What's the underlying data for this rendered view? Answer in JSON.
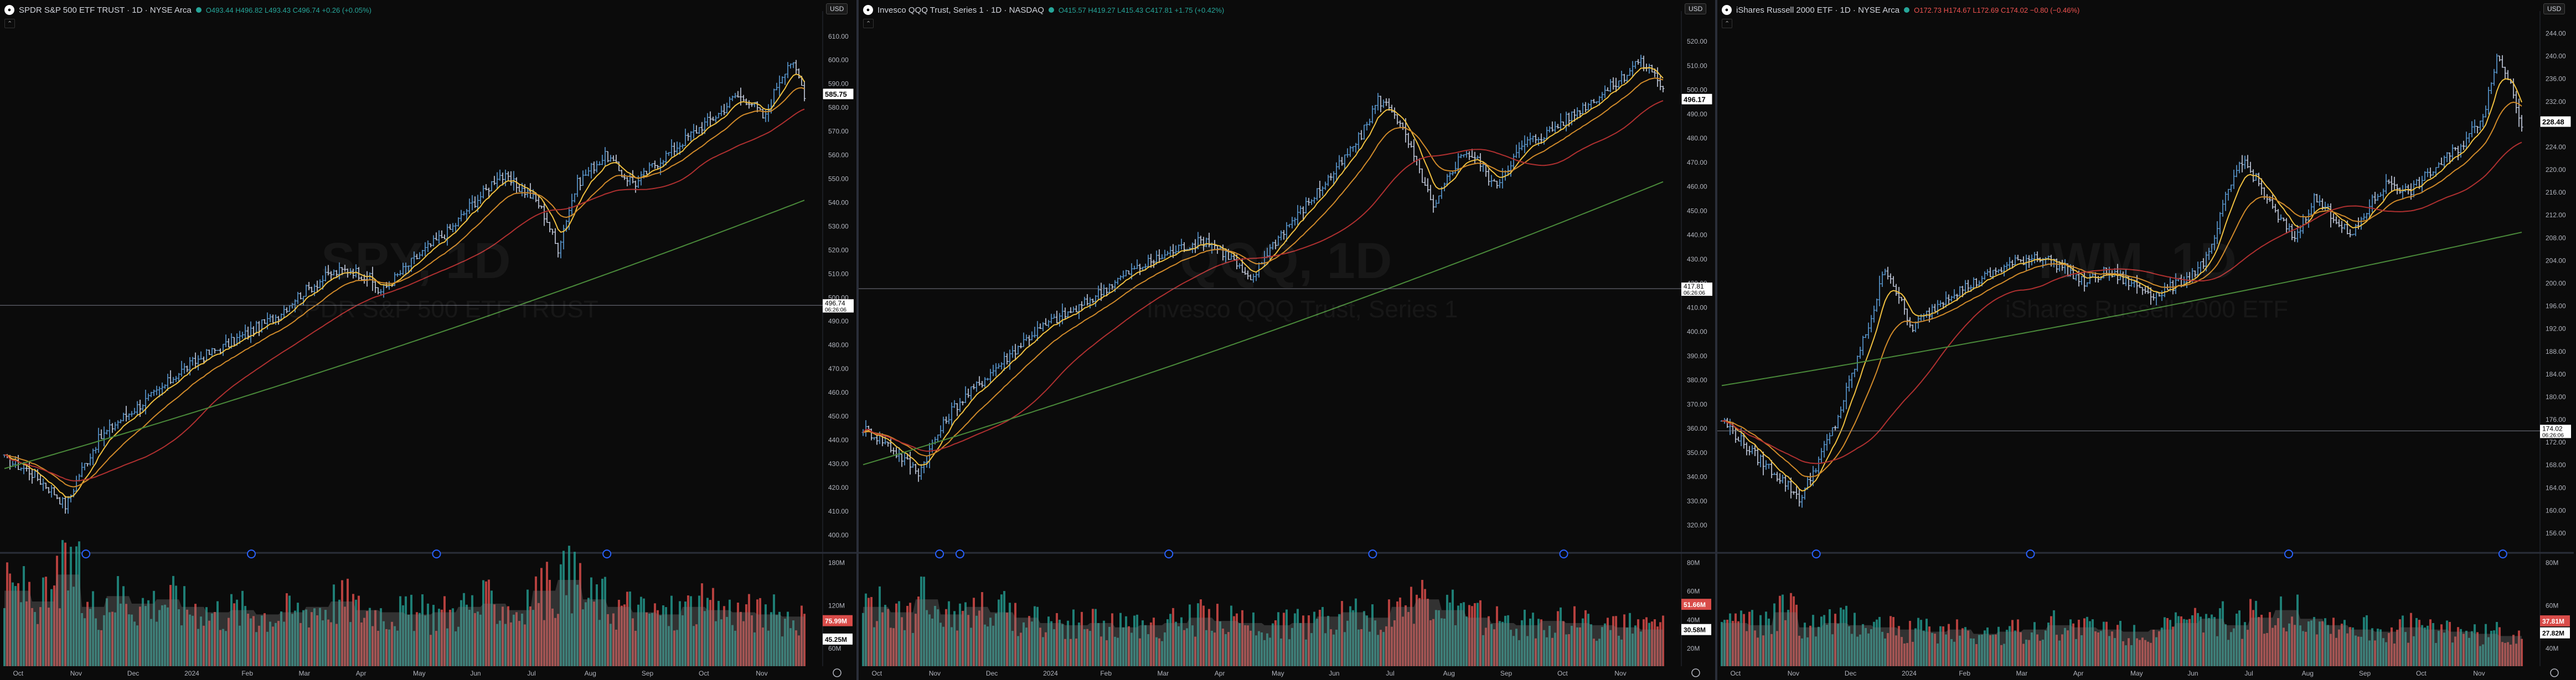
{
  "colors": {
    "bar_up": "#5b9bd5",
    "bar_down": "#c9d1e3",
    "ema_fast": "#f0c040",
    "ema_mid": "#d08a2a",
    "ema_slow": "#b03030",
    "ma_long": "#4a8a3a",
    "vol_up": "#26a69a",
    "vol_down": "#ef5350",
    "vol_avg": "#7a7a7a"
  },
  "chart_data": [
    {
      "type": "ohlc",
      "symbol_name": "SPDR S&P 500 ETF TRUST · 1D · NYSE Arca",
      "logo_icon": "spdr-logo-icon",
      "ohlc_label": "O493.44 H496.82 L493.43 C496.74 +0.26 (+0.05%)",
      "change_sign": "pos",
      "currency": "USD",
      "watermark_ticker": "SPY, 1D",
      "watermark_name": "SPDR S&P 500 ETF TRUST",
      "price_ticks": [
        610,
        600,
        590,
        580,
        570,
        560,
        550,
        540,
        530,
        520,
        510,
        500,
        490,
        480,
        470,
        460,
        450,
        440,
        430,
        420,
        410,
        400
      ],
      "ylim": [
        396,
        616
      ],
      "last_price": "585.75",
      "crosshair_price": "496.74",
      "crosshair_time": "06:26:06",
      "crosshair_y": 496.74,
      "month_labels": [
        "Oct",
        "Nov",
        "Dec",
        "2024",
        "Feb",
        "Mar",
        "Apr",
        "May",
        "Jun",
        "Jul",
        "Aug",
        "Sep",
        "Oct",
        "Nov"
      ],
      "volume_ticks": [
        "180M",
        "120M",
        "60M"
      ],
      "volume_ylim": [
        0,
        180
      ],
      "volume_labels": [
        "75.99M",
        "45.25M"
      ],
      "volume_label_values": [
        75.99,
        45.25
      ],
      "price_path": [
        [
          0,
          432
        ],
        [
          10,
          427
        ],
        [
          20,
          418
        ],
        [
          25,
          412
        ],
        [
          30,
          425
        ],
        [
          38,
          440
        ],
        [
          45,
          447
        ],
        [
          55,
          455
        ],
        [
          62,
          460
        ],
        [
          70,
          468
        ],
        [
          80,
          475
        ],
        [
          90,
          480
        ],
        [
          100,
          486
        ],
        [
          110,
          492
        ],
        [
          118,
          500
        ],
        [
          125,
          505
        ],
        [
          132,
          510
        ],
        [
          140,
          512
        ],
        [
          148,
          508
        ],
        [
          152,
          502
        ],
        [
          156,
          506
        ],
        [
          162,
          512
        ],
        [
          168,
          518
        ],
        [
          175,
          524
        ],
        [
          182,
          530
        ],
        [
          188,
          538
        ],
        [
          195,
          545
        ],
        [
          200,
          552
        ],
        [
          206,
          548
        ],
        [
          212,
          544
        ],
        [
          216,
          540
        ],
        [
          220,
          532
        ],
        [
          224,
          520
        ],
        [
          228,
          535
        ],
        [
          232,
          548
        ],
        [
          238,
          555
        ],
        [
          244,
          560
        ],
        [
          250,
          552
        ],
        [
          256,
          548
        ],
        [
          262,
          555
        ],
        [
          268,
          560
        ],
        [
          275,
          566
        ],
        [
          282,
          572
        ],
        [
          290,
          578
        ],
        [
          296,
          585
        ],
        [
          302,
          583
        ],
        [
          308,
          575
        ],
        [
          313,
          590
        ],
        [
          318,
          600
        ],
        [
          322,
          592
        ],
        [
          324,
          586
        ]
      ],
      "ma_long_start": 428,
      "ma_long_end": 541,
      "events": [
        33,
        100,
        175,
        244
      ],
      "volume_profile": [
        70,
        60,
        85,
        55,
        65,
        58,
        62,
        55,
        50,
        52,
        48,
        50,
        55,
        60,
        52,
        50,
        48,
        50,
        55,
        58,
        52,
        70,
        80,
        62,
        55,
        50,
        48,
        55,
        52,
        50,
        48,
        46
      ]
    },
    {
      "type": "ohlc",
      "symbol_name": "Invesco QQQ Trust, Series 1 · 1D · NASDAQ",
      "logo_icon": "invesco-logo-icon",
      "ohlc_label": "O415.57 H419.27 L415.43 C417.81 +1.75 (+0.42%)",
      "change_sign": "pos",
      "currency": "USD",
      "watermark_ticker": "QQQ, 1D",
      "watermark_name": "Invesco QQQ Trust, Series 1",
      "price_ticks": [
        520,
        510,
        500,
        490,
        480,
        470,
        460,
        450,
        440,
        430,
        420,
        410,
        400,
        390,
        380,
        370,
        360,
        350,
        340,
        330,
        320
      ],
      "ylim": [
        312,
        528
      ],
      "last_price": "496.17",
      "crosshair_price": "417.81",
      "crosshair_time": "06:26:06",
      "crosshair_y": 417.81,
      "month_labels": [
        "Oct",
        "Nov",
        "Dec",
        "2024",
        "Feb",
        "Mar",
        "Apr",
        "May",
        "Jun",
        "Jul",
        "Aug",
        "Sep",
        "Oct",
        "Nov"
      ],
      "volume_ticks": [
        "80M",
        "60M",
        "40M",
        "20M"
      ],
      "volume_ylim": [
        0,
        90
      ],
      "volume_labels": [
        "51.66M",
        "30.58M"
      ],
      "volume_label_values": [
        51.66,
        30.58
      ],
      "price_path": [
        [
          0,
          360
        ],
        [
          8,
          355
        ],
        [
          15,
          348
        ],
        [
          22,
          342
        ],
        [
          28,
          355
        ],
        [
          35,
          368
        ],
        [
          45,
          378
        ],
        [
          55,
          388
        ],
        [
          65,
          398
        ],
        [
          75,
          405
        ],
        [
          85,
          410
        ],
        [
          95,
          418
        ],
        [
          105,
          425
        ],
        [
          115,
          430
        ],
        [
          125,
          435
        ],
        [
          135,
          438
        ],
        [
          145,
          430
        ],
        [
          152,
          420
        ],
        [
          158,
          432
        ],
        [
          165,
          442
        ],
        [
          172,
          450
        ],
        [
          180,
          460
        ],
        [
          188,
          470
        ],
        [
          196,
          482
        ],
        [
          202,
          496
        ],
        [
          208,
          492
        ],
        [
          214,
          478
        ],
        [
          220,
          462
        ],
        [
          224,
          450
        ],
        [
          230,
          465
        ],
        [
          236,
          475
        ],
        [
          242,
          470
        ],
        [
          248,
          460
        ],
        [
          254,
          470
        ],
        [
          260,
          478
        ],
        [
          268,
          482
        ],
        [
          276,
          488
        ],
        [
          284,
          494
        ],
        [
          292,
          500
        ],
        [
          298,
          505
        ],
        [
          304,
          512
        ],
        [
          310,
          508
        ],
        [
          314,
          500
        ]
      ],
      "ma_long_start": 345,
      "ma_long_end": 462,
      "events": [
        30,
        38,
        120,
        200,
        275
      ],
      "volume_profile": [
        55,
        50,
        62,
        48,
        55,
        50,
        45,
        40,
        38,
        40,
        36,
        38,
        40,
        45,
        42,
        40,
        38,
        40,
        46,
        50,
        45,
        55,
        62,
        52,
        45,
        40,
        38,
        42,
        40,
        38,
        36,
        34
      ]
    },
    {
      "type": "ohlc",
      "symbol_name": "iShares Russell 2000 ETF · 1D · NYSE Arca",
      "logo_icon": "ishares-logo-icon",
      "ohlc_label": "O172.73 H174.67 L172.69 C174.02 −0.80 (−0.46%)",
      "change_sign": "neg",
      "currency": "USD",
      "watermark_ticker": "IWM, 1D",
      "watermark_name": "iShares Russell 2000 ETF",
      "price_ticks": [
        244,
        240,
        236,
        232,
        228,
        224,
        220,
        216,
        212,
        208,
        204,
        200,
        196,
        192,
        188,
        184,
        180,
        176,
        172,
        168,
        164,
        160,
        156
      ],
      "ylim": [
        154,
        246
      ],
      "last_price": "228.48",
      "crosshair_price": "174.02",
      "crosshair_time": "06:26:06",
      "crosshair_y": 174.02,
      "month_labels": [
        "Oct",
        "Nov",
        "Dec",
        "2024",
        "Feb",
        "Mar",
        "Apr",
        "May",
        "Jun",
        "Jul",
        "Aug",
        "Sep",
        "Oct",
        "Nov"
      ],
      "volume_ticks": [
        "80M",
        "60M",
        "40M"
      ],
      "volume_ylim": [
        0,
        90
      ],
      "volume_labels": [
        "37.81M",
        "27.82M"
      ],
      "volume_label_values": [
        37.81,
        27.82
      ],
      "price_path": [
        [
          0,
          176
        ],
        [
          10,
          170
        ],
        [
          20,
          165
        ],
        [
          25,
          162
        ],
        [
          30,
          168
        ],
        [
          36,
          175
        ],
        [
          42,
          185
        ],
        [
          48,
          195
        ],
        [
          52,
          203
        ],
        [
          56,
          198
        ],
        [
          60,
          192
        ],
        [
          66,
          195
        ],
        [
          72,
          198
        ],
        [
          80,
          200
        ],
        [
          90,
          203
        ],
        [
          100,
          205
        ],
        [
          108,
          203
        ],
        [
          115,
          200
        ],
        [
          122,
          202
        ],
        [
          130,
          200
        ],
        [
          138,
          198
        ],
        [
          145,
          200
        ],
        [
          150,
          202
        ],
        [
          155,
          205
        ],
        [
          160,
          215
        ],
        [
          165,
          222
        ],
        [
          170,
          218
        ],
        [
          176,
          212
        ],
        [
          182,
          208
        ],
        [
          188,
          215
        ],
        [
          194,
          212
        ],
        [
          200,
          208
        ],
        [
          206,
          214
        ],
        [
          212,
          218
        ],
        [
          218,
          216
        ],
        [
          224,
          219
        ],
        [
          230,
          222
        ],
        [
          236,
          225
        ],
        [
          242,
          230
        ],
        [
          246,
          240
        ],
        [
          250,
          236
        ],
        [
          254,
          228
        ]
      ],
      "ma_long_start": 182,
      "ma_long_end": 209,
      "events": [
        30,
        98,
        180,
        248
      ],
      "volume_profile": [
        40,
        38,
        50,
        36,
        40,
        38,
        36,
        34,
        32,
        34,
        30,
        32,
        34,
        38,
        36,
        34,
        32,
        34,
        40,
        44,
        38,
        45,
        52,
        44,
        38,
        34,
        32,
        36,
        34,
        32,
        30,
        28
      ]
    }
  ]
}
